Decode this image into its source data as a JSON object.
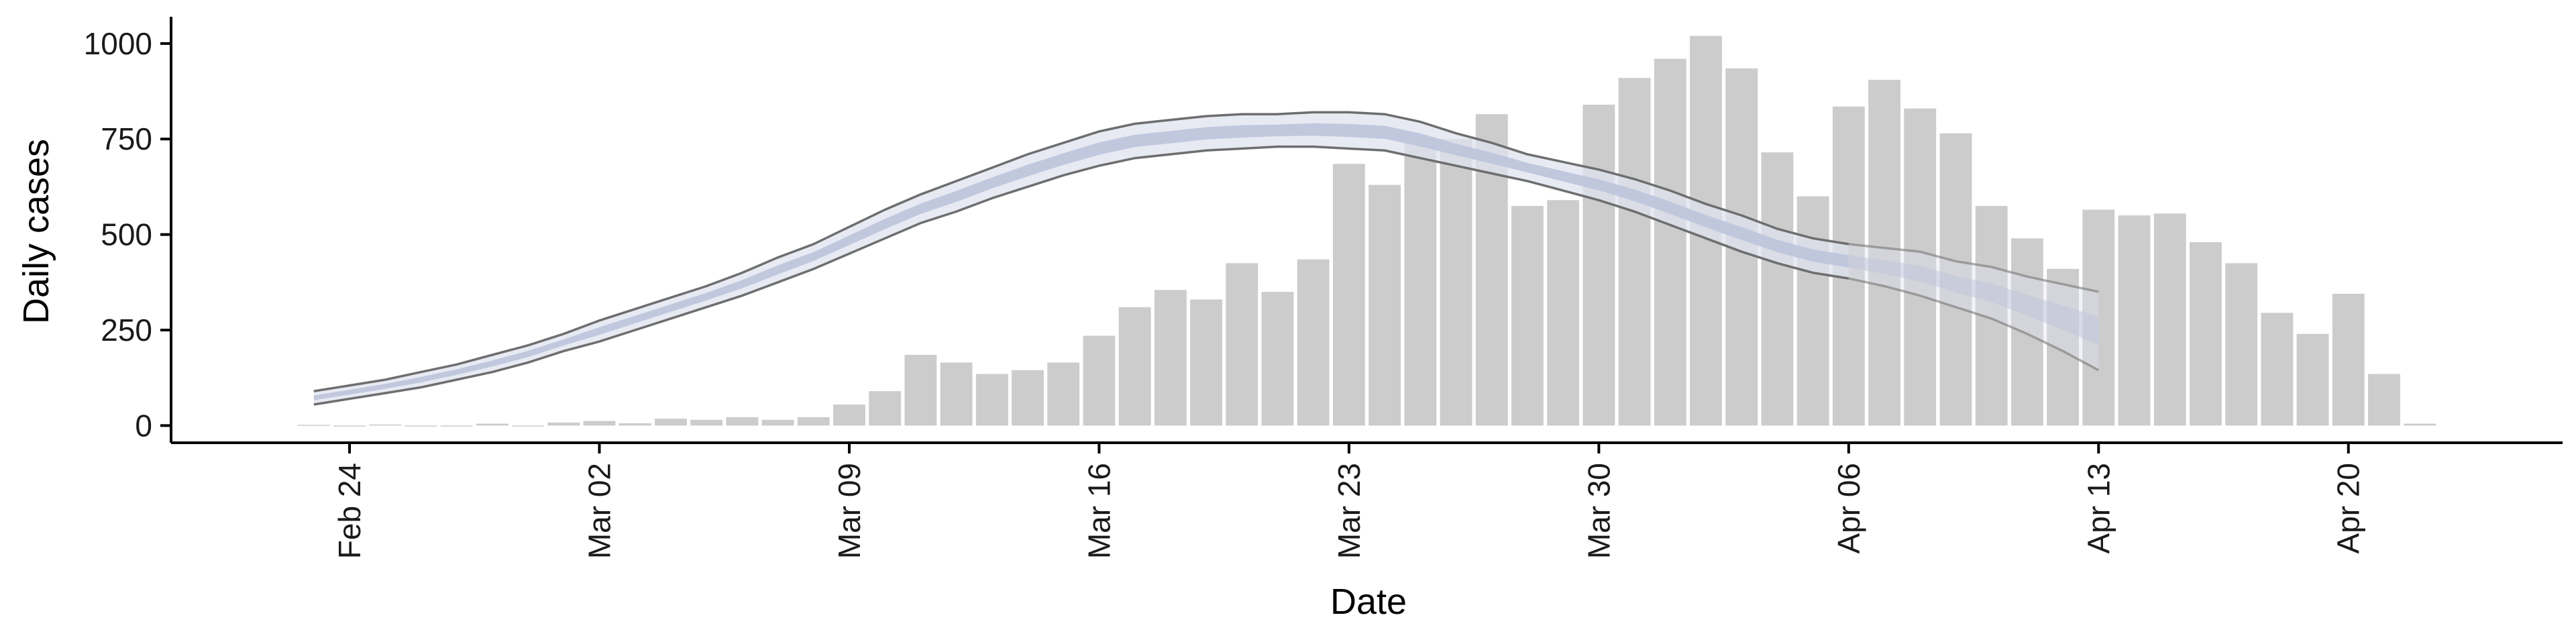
{
  "chart_data": {
    "type": "bar",
    "xlabel": "Date",
    "ylabel": "Daily cases",
    "ylim": [
      -45,
      1070
    ],
    "xlim": [
      "2020-02-19",
      "2020-04-26"
    ],
    "y_ticks": [
      0,
      250,
      500,
      750,
      1000
    ],
    "x_ticks": [
      {
        "date": "2020-02-24",
        "label": "Feb 24"
      },
      {
        "date": "2020-03-02",
        "label": "Mar 02"
      },
      {
        "date": "2020-03-09",
        "label": "Mar 09"
      },
      {
        "date": "2020-03-16",
        "label": "Mar 16"
      },
      {
        "date": "2020-03-23",
        "label": "Mar 23"
      },
      {
        "date": "2020-03-30",
        "label": "Mar 30"
      },
      {
        "date": "2020-04-06",
        "label": "Apr 06"
      },
      {
        "date": "2020-04-13",
        "label": "Apr 13"
      },
      {
        "date": "2020-04-20",
        "label": "Apr 20"
      }
    ],
    "grid": false,
    "colors": {
      "bars": "#cccccc",
      "band_outer": "#dfe3ef",
      "band_inner": "#bcc4dc",
      "band_edge": "#6e6e6e",
      "axis": "#000000"
    },
    "bars": {
      "start_date": "2020-02-23",
      "values": [
        2,
        0,
        3,
        0,
        0,
        5,
        0,
        8,
        12,
        6,
        18,
        15,
        22,
        15,
        22,
        55,
        90,
        185,
        165,
        135,
        145,
        165,
        235,
        310,
        355,
        330,
        425,
        350,
        435,
        685,
        630,
        755,
        750,
        815,
        575,
        590,
        840,
        910,
        960,
        1020,
        935,
        715,
        600,
        835,
        905,
        830,
        765,
        575,
        490,
        410,
        565,
        550,
        555,
        480,
        425,
        295,
        240,
        345,
        135,
        5
      ]
    },
    "band": {
      "start_date": "2020-02-23",
      "upper": [
        90,
        105,
        120,
        140,
        160,
        185,
        210,
        240,
        275,
        305,
        335,
        365,
        400,
        440,
        475,
        520,
        565,
        605,
        640,
        675,
        710,
        740,
        770,
        790,
        800,
        810,
        815,
        815,
        820,
        820,
        815,
        795,
        765,
        740,
        710,
        690,
        670,
        645,
        615,
        580,
        550,
        515,
        490,
        475,
        465,
        455,
        430,
        415,
        390,
        370,
        350
      ],
      "lower": [
        55,
        70,
        85,
        100,
        120,
        140,
        165,
        195,
        220,
        250,
        280,
        310,
        340,
        375,
        410,
        450,
        490,
        530,
        560,
        595,
        625,
        655,
        680,
        700,
        710,
        720,
        725,
        730,
        730,
        725,
        720,
        700,
        680,
        660,
        640,
        615,
        590,
        560,
        525,
        490,
        455,
        425,
        400,
        385,
        365,
        340,
        310,
        280,
        240,
        195,
        145
      ],
      "forecast_from_date": "2020-04-06"
    }
  }
}
